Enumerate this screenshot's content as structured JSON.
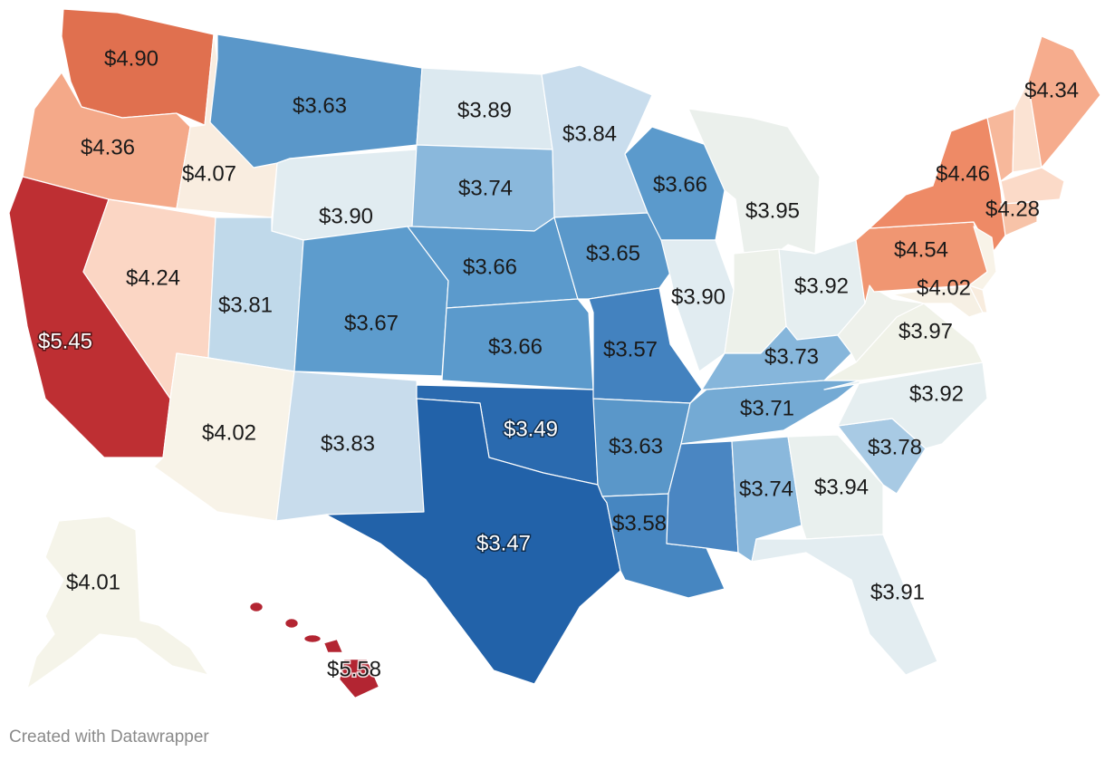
{
  "credit": "Created with Datawrapper",
  "states": [
    {
      "id": "WA",
      "price": "$4.90",
      "color": "#e0704f"
    },
    {
      "id": "OR",
      "price": "$4.36",
      "color": "#f4a989"
    },
    {
      "id": "CA",
      "price": "$5.45",
      "color": "#be2f33"
    },
    {
      "id": "ID",
      "price": "$4.07",
      "color": "#f9ede0"
    },
    {
      "id": "NV",
      "price": "$4.24",
      "color": "#fbd6c4"
    },
    {
      "id": "MT",
      "price": "$3.63",
      "color": "#5a97c9"
    },
    {
      "id": "WY",
      "price": "$3.90",
      "color": "#e1ecf1"
    },
    {
      "id": "UT",
      "price": "$3.81",
      "color": "#c0d9ea"
    },
    {
      "id": "AZ",
      "price": "$4.02",
      "color": "#f8f3e8"
    },
    {
      "id": "CO",
      "price": "$3.67",
      "color": "#5d9ccd"
    },
    {
      "id": "NM",
      "price": "$3.83",
      "color": "#c8dcec"
    },
    {
      "id": "ND",
      "price": "$3.89",
      "color": "#dce9f0"
    },
    {
      "id": "SD",
      "price": "$3.74",
      "color": "#8ab8dc"
    },
    {
      "id": "NE",
      "price": "$3.66",
      "color": "#5b9acc"
    },
    {
      "id": "KS",
      "price": "$3.66",
      "color": "#5b9acc"
    },
    {
      "id": "OK",
      "price": "$3.49",
      "color": "#2a6aaf"
    },
    {
      "id": "TX",
      "price": "$3.47",
      "color": "#2262a9"
    },
    {
      "id": "MN",
      "price": "$3.84",
      "color": "#c9dded"
    },
    {
      "id": "IA",
      "price": "$3.65",
      "color": "#5a98ca"
    },
    {
      "id": "MO",
      "price": "$3.57",
      "color": "#4382bf"
    },
    {
      "id": "AR",
      "price": "$3.63",
      "color": "#5a97c9"
    },
    {
      "id": "LA",
      "price": "$3.58",
      "color": "#4686c1"
    },
    {
      "id": "WI",
      "price": "$3.66",
      "color": "#5b9acc"
    },
    {
      "id": "IL",
      "price": "$3.90",
      "color": "#e1ecf1"
    },
    {
      "id": "MI",
      "price": "$3.95",
      "color": "#ebf0ec"
    },
    {
      "id": "IN",
      "price": "",
      "color": "#edf1ea"
    },
    {
      "id": "OH",
      "price": "$3.92",
      "color": "#e5eef0"
    },
    {
      "id": "KY",
      "price": "$3.73",
      "color": "#86b6db"
    },
    {
      "id": "TN",
      "price": "$3.71",
      "color": "#74aad4"
    },
    {
      "id": "MS",
      "price": "",
      "color": "#4a86c2"
    },
    {
      "id": "AL",
      "price": "$3.74",
      "color": "#8ab8dc"
    },
    {
      "id": "GA",
      "price": "$3.94",
      "color": "#e9f0ee"
    },
    {
      "id": "FL",
      "price": "$3.91",
      "color": "#e3edf1"
    },
    {
      "id": "SC",
      "price": "$3.78",
      "color": "#a8cae4"
    },
    {
      "id": "NC",
      "price": "$3.92",
      "color": "#e5eef0"
    },
    {
      "id": "VA",
      "price": "$3.97",
      "color": "#f0f2e8"
    },
    {
      "id": "WV",
      "price": "",
      "color": "#eef1eb"
    },
    {
      "id": "PA",
      "price": "$4.54",
      "color": "#f09672"
    },
    {
      "id": "NY",
      "price": "$4.46",
      "color": "#ee8a66"
    },
    {
      "id": "NJ",
      "price": "$4.02",
      "color": "#f8f3e8"
    },
    {
      "id": "MD",
      "price": "",
      "color": "#f6f0e4"
    },
    {
      "id": "DE",
      "price": "",
      "color": "#f8ecde"
    },
    {
      "id": "CT",
      "price": "",
      "color": "#f7c3a8"
    },
    {
      "id": "MA",
      "price": "$4.28",
      "color": "#fbdac8"
    },
    {
      "id": "VT",
      "price": "",
      "color": "#f7b89b"
    },
    {
      "id": "NH",
      "price": "",
      "color": "#fbe3d3"
    },
    {
      "id": "ME",
      "price": "$4.34",
      "color": "#f6ac8d"
    },
    {
      "id": "AK",
      "price": "$4.01",
      "color": "#f5f4e9"
    },
    {
      "id": "HI",
      "price": "$5.58",
      "color": "#b32532"
    }
  ]
}
